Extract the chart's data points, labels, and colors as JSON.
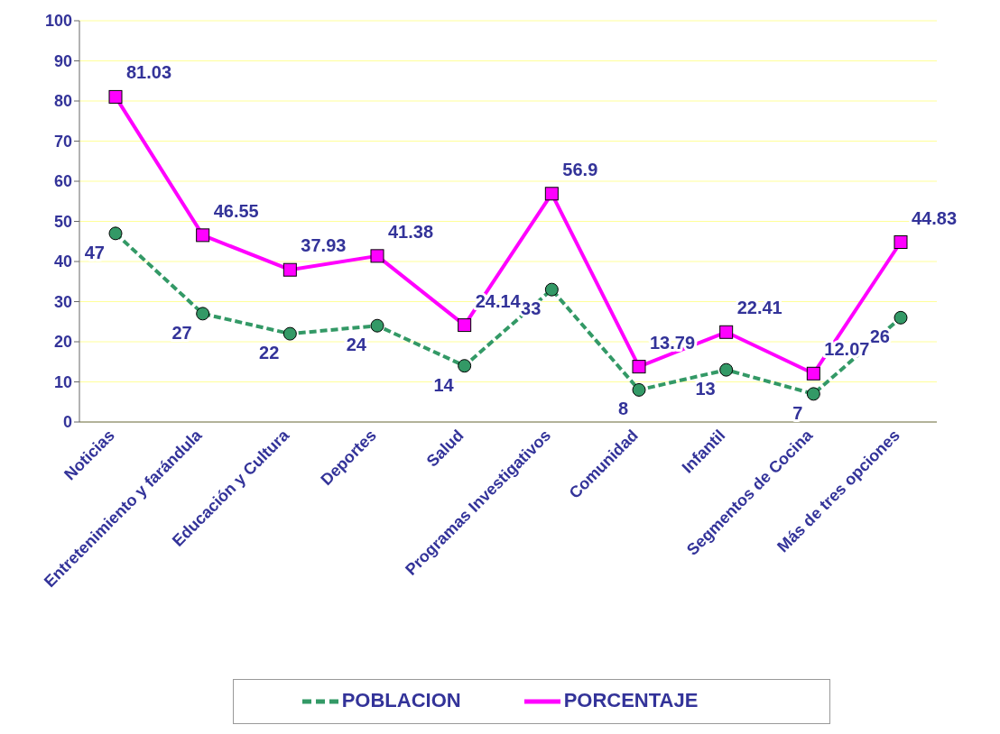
{
  "chart_data": {
    "type": "line",
    "categories": [
      "Noticias",
      "Entretenimiento  y farándula",
      "Educación y Cultura",
      "Deportes",
      "Salud",
      "Programas Investigativos",
      "Comunidad",
      "Infantil",
      "Segmentos de Cocina",
      "Más de tres opciones"
    ],
    "series": [
      {
        "name": "POBLACION",
        "color": "#339966",
        "marker": "circle",
        "line_style": "dashed",
        "values": [
          47,
          27,
          22,
          24,
          14,
          33,
          8,
          13,
          7,
          26
        ]
      },
      {
        "name": "PORCENTAJE",
        "color": "#ff00ff",
        "marker": "square",
        "line_style": "solid",
        "values": [
          81.03,
          46.55,
          37.93,
          41.38,
          24.14,
          56.9,
          13.79,
          22.41,
          12.07,
          44.83
        ]
      }
    ],
    "ylim": [
      0,
      100
    ],
    "yticks": [
      0,
      10,
      20,
      30,
      40,
      50,
      60,
      70,
      80,
      90,
      100
    ],
    "grid": "y",
    "legend": "bottom",
    "data_labels": true
  }
}
